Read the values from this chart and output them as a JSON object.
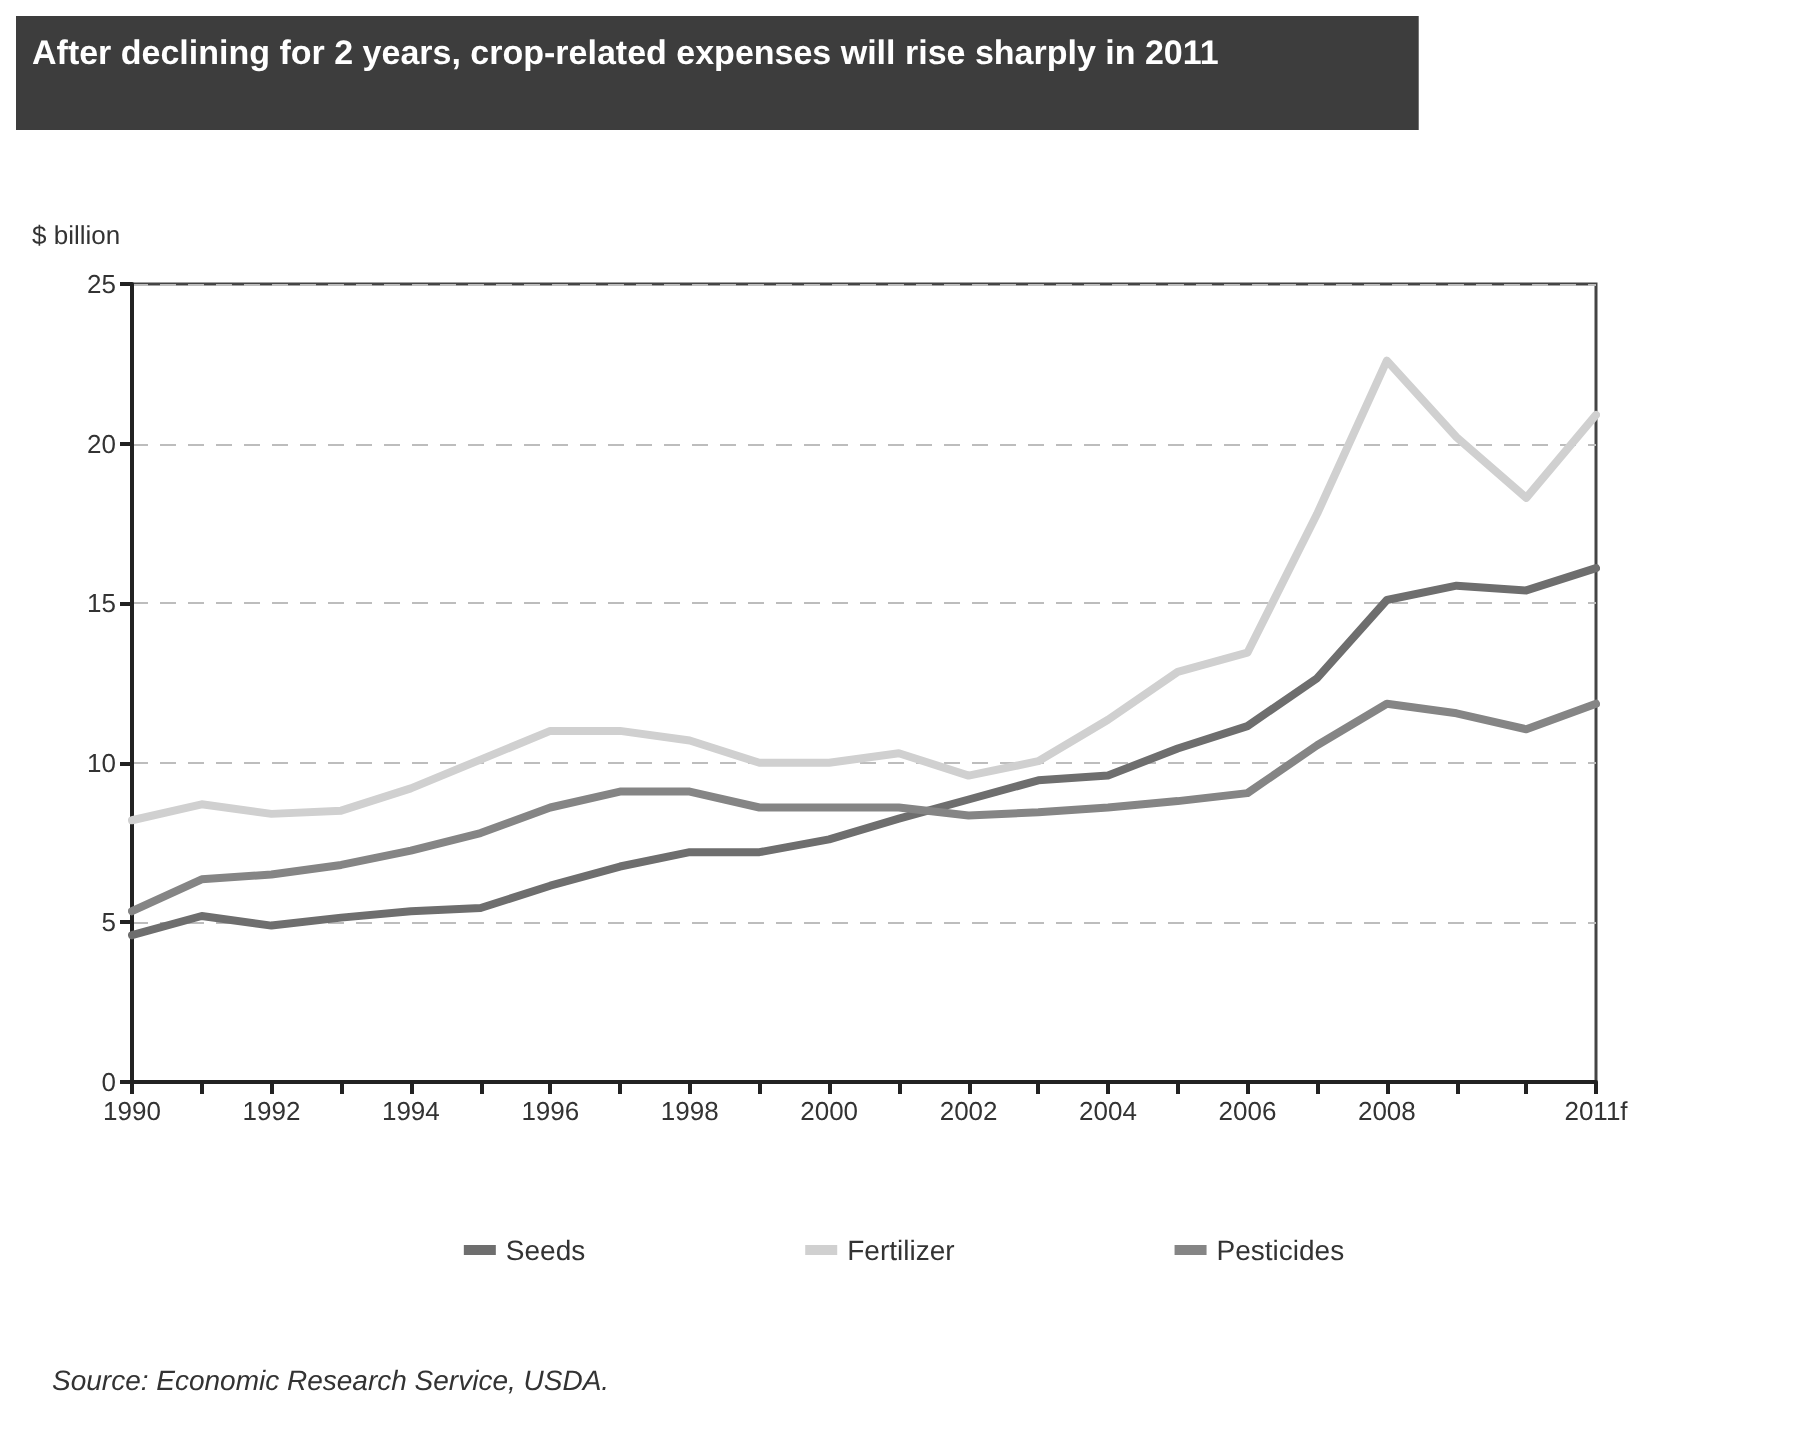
{
  "chart_data": {
    "type": "line",
    "title": "After declining for 2 years, crop-related expenses will rise sharply in 2011",
    "ylabel": "$ billion",
    "x": [
      1990,
      1991,
      1992,
      1993,
      1994,
      1995,
      1996,
      1997,
      1998,
      1999,
      2000,
      2001,
      2002,
      2003,
      2004,
      2005,
      2006,
      2007,
      2008,
      2009,
      2010,
      2011
    ],
    "series": [
      {
        "name": "Seeds",
        "color": "#6e6e6e",
        "values": [
          4.6,
          5.2,
          4.9,
          5.15,
          5.35,
          5.45,
          6.15,
          6.75,
          7.2,
          7.2,
          7.6,
          8.25,
          8.85,
          9.45,
          9.6,
          10.45,
          11.15,
          12.65,
          15.1,
          15.55,
          15.4,
          16.1
        ]
      },
      {
        "name": "Fertilizer",
        "color": "#d0d0d0",
        "values": [
          8.2,
          8.7,
          8.4,
          8.5,
          9.2,
          10.1,
          11.0,
          11.0,
          10.7,
          10.0,
          10.0,
          10.3,
          9.6,
          10.05,
          11.35,
          12.85,
          13.45,
          17.8,
          22.6,
          20.2,
          18.3,
          20.9
        ]
      },
      {
        "name": "Pesticides",
        "color": "#858585",
        "values": [
          5.35,
          6.35,
          6.5,
          6.8,
          7.25,
          7.8,
          8.6,
          9.1,
          9.1,
          8.6,
          8.6,
          8.6,
          8.35,
          8.45,
          8.6,
          8.8,
          9.05,
          10.55,
          11.85,
          11.55,
          11.05,
          11.85
        ]
      }
    ],
    "xlim": [
      1990,
      2011
    ],
    "xticks": [
      1990,
      {
        "value": 1991,
        "label": null
      },
      1992,
      {
        "value": 1993,
        "label": null
      },
      1994,
      {
        "value": 1995,
        "label": null
      },
      1996,
      {
        "value": 1997,
        "label": null
      },
      1998,
      {
        "value": 1999,
        "label": null
      },
      2000,
      {
        "value": 2001,
        "label": null
      },
      2002,
      {
        "value": 2003,
        "label": null
      },
      2004,
      {
        "value": 2005,
        "label": null
      },
      2006,
      {
        "value": 2007,
        "label": null
      },
      2008,
      {
        "value": 2009,
        "label": null
      },
      {
        "value": 2010,
        "label": null
      },
      {
        "value": 2011,
        "label": "2011f"
      }
    ],
    "ylim": [
      0,
      25
    ],
    "yticks": [
      0,
      5,
      10,
      15,
      20,
      25
    ],
    "grid": "y",
    "legend": "bottom",
    "marker": "none",
    "line_style": "solid",
    "annotations": [
      "Source: Economic Research Service, USDA."
    ]
  }
}
